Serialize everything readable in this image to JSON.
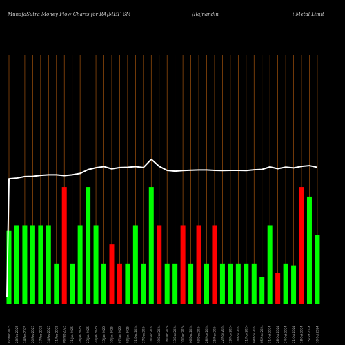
{
  "header": {
    "left": "MunafaSutra  Money Flow  Charts for RAJMET_SM",
    "mid": "(Rajnandin",
    "right": "i  Metal Limit"
  },
  "chart_data": {
    "type": "bar",
    "title": "MunafaSutra  Money Flow  Charts for RAJMET_SM",
    "colors": {
      "up": "#00ff00",
      "down": "#ff0000",
      "line": "#ffffff",
      "grid": "#a0520d",
      "background": "#000000"
    },
    "categories": [
      "07 Mar 2025",
      "28 Feb 2025",
      "24 Feb 2025",
      "20 Feb 2025",
      "17 Feb 2025",
      "14 Feb 2025",
      "11 Feb 2025",
      "06 Feb 2025",
      "31 Jan 2025",
      "28 Jan 2025",
      "23 Jan 2025",
      "20 Jan 2025",
      "15 Jan 2025",
      "10 Jan 2025",
      "07 Jan 2025",
      "03 Jan 2025",
      "31 Dec 2024",
      "27 Dec 2024",
      "24 Dec 2024",
      "19 Dec 2024",
      "16 Dec 2024",
      "13 Dec 2024",
      "10 Dec 2024",
      "06 Dec 2024",
      "03 Dec 2024",
      "28 Nov 2024",
      "25 Nov 2024",
      "22 Nov 2024",
      "19 Nov 2024",
      "14 Nov 2024",
      "11 Nov 2024",
      "08 Nov 2024",
      "05 Nov 2024",
      "31 Oct 2024",
      "28 Oct 2024",
      "24 Oct 2024",
      "21 Oct 2024",
      "18 Oct 2024",
      "15 Oct 2024",
      "10 Oct 2024"
    ],
    "values": [
      38,
      41,
      41,
      41,
      41,
      41,
      21,
      61,
      21,
      41,
      61,
      41,
      21,
      31,
      21,
      21,
      41,
      21,
      61,
      41,
      21,
      21,
      41,
      21,
      41,
      21,
      41,
      21,
      21,
      21,
      21,
      21,
      14,
      41,
      16,
      21,
      20,
      61,
      56,
      36
    ],
    "direction": [
      "up",
      "up",
      "up",
      "up",
      "up",
      "up",
      "up",
      "down",
      "up",
      "up",
      "up",
      "up",
      "up",
      "down",
      "down",
      "up",
      "up",
      "up",
      "up",
      "down",
      "up",
      "up",
      "down",
      "up",
      "down",
      "up",
      "down",
      "up",
      "up",
      "up",
      "up",
      "up",
      "up",
      "up",
      "down",
      "up",
      "up",
      "down",
      "up",
      "up"
    ],
    "price_line": [
      65.3,
      65.7,
      66.5,
      66.6,
      67.1,
      67.4,
      67.4,
      67.0,
      67.4,
      68.1,
      70.1,
      71.1,
      71.7,
      70.5,
      71.2,
      71.3,
      71.7,
      71.2,
      75.5,
      71.8,
      69.7,
      69.3,
      69.6,
      69.8,
      69.9,
      69.9,
      69.7,
      69.6,
      69.7,
      69.7,
      69.6,
      70.0,
      70.2,
      71.5,
      70.6,
      71.4,
      71.0,
      71.8,
      72.2,
      71.3
    ],
    "line_start": 3.5,
    "ylim": [
      0,
      130
    ]
  }
}
